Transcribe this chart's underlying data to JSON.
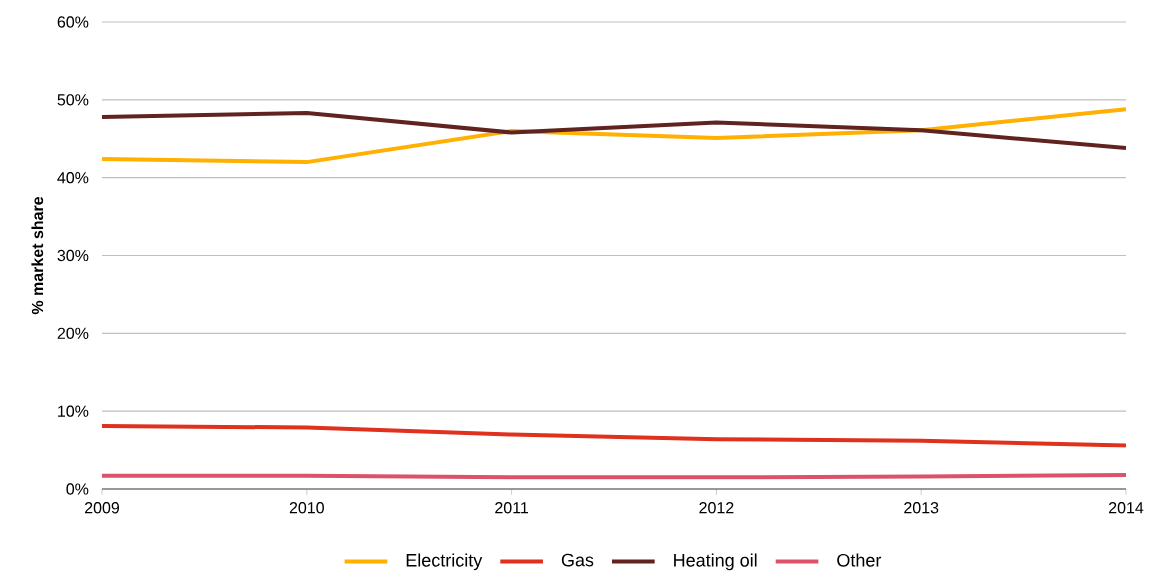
{
  "chart_data": {
    "type": "line",
    "ylabel": "% market share",
    "categories": [
      "2009",
      "2010",
      "2011",
      "2012",
      "2013",
      "2014"
    ],
    "series": [
      {
        "name": "Electricity",
        "color": "#ffb000",
        "values": [
          42.4,
          42.0,
          46.0,
          45.1,
          46.1,
          48.8
        ]
      },
      {
        "name": "Gas",
        "color": "#e0301e",
        "values": [
          8.1,
          7.9,
          7.0,
          6.4,
          6.2,
          5.6
        ]
      },
      {
        "name": "Heating oil",
        "color": "#602320",
        "values": [
          47.8,
          48.3,
          45.8,
          47.1,
          46.1,
          43.8
        ]
      },
      {
        "name": "Other",
        "color": "#db536a",
        "values": [
          1.7,
          1.7,
          1.5,
          1.5,
          1.6,
          1.8
        ]
      }
    ],
    "ylim": [
      0,
      60
    ],
    "yticks": [
      {
        "value": 0,
        "label": "0%"
      },
      {
        "value": 10,
        "label": "10%"
      },
      {
        "value": 20,
        "label": "20%"
      },
      {
        "value": 30,
        "label": "30%"
      },
      {
        "value": 40,
        "label": "40%"
      },
      {
        "value": 50,
        "label": "50%"
      },
      {
        "value": 60,
        "label": "60%"
      }
    ],
    "grid": "y",
    "legend": "bottom"
  }
}
